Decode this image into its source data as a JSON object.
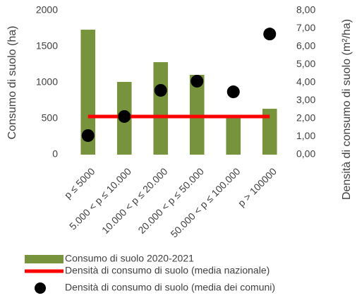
{
  "chart_data": {
    "type": "bar",
    "categories": [
      "p ≤ 5000",
      "5.000 < p ≤ 10.000",
      "10.000 < p ≤ 20.000",
      "20.000 < p ≤ 50.000",
      "50.000 < p ≤ 100.000",
      "p > 100000"
    ],
    "series": [
      {
        "name": "Consumo di suolo 2020-2021",
        "type": "bar",
        "color": "#77933c",
        "values": [
          1735,
          1010,
          1284,
          1108,
          520,
          637
        ]
      },
      {
        "name": "Densità di consumo di suolo (media nazionale)",
        "type": "line",
        "axis": "y2",
        "color": "#ff0000",
        "values": [
          2.12,
          2.12,
          2.12,
          2.12,
          2.12,
          2.12
        ]
      },
      {
        "name": "Densità di consumo di suolo (media dei comuni)",
        "type": "scatter",
        "axis": "y2",
        "color": "#000000",
        "values": [
          1.06,
          2.12,
          3.57,
          4.08,
          3.49,
          6.7
        ]
      }
    ],
    "ylabel": "Consumo di suolo (ha)",
    "y2label": "Densità di consumo di suolo  (m²/ha)",
    "ylim": [
      0,
      2000
    ],
    "yticks": [
      0,
      500,
      1000,
      1500,
      2000
    ],
    "y2lim": [
      0,
      8
    ],
    "y2ticks": [
      {
        "value": 0,
        "label": "0,00"
      },
      {
        "value": 1,
        "label": "1,00"
      },
      {
        "value": 2,
        "label": "2,00"
      },
      {
        "value": 3,
        "label": "3,00"
      },
      {
        "value": 4,
        "label": "4,00"
      },
      {
        "value": 5,
        "label": "5,00"
      },
      {
        "value": 6,
        "label": "6,00"
      },
      {
        "value": 7,
        "label": "7,00"
      },
      {
        "value": 8,
        "label": "8,00"
      }
    ],
    "grid": false,
    "legend": "bottom"
  }
}
